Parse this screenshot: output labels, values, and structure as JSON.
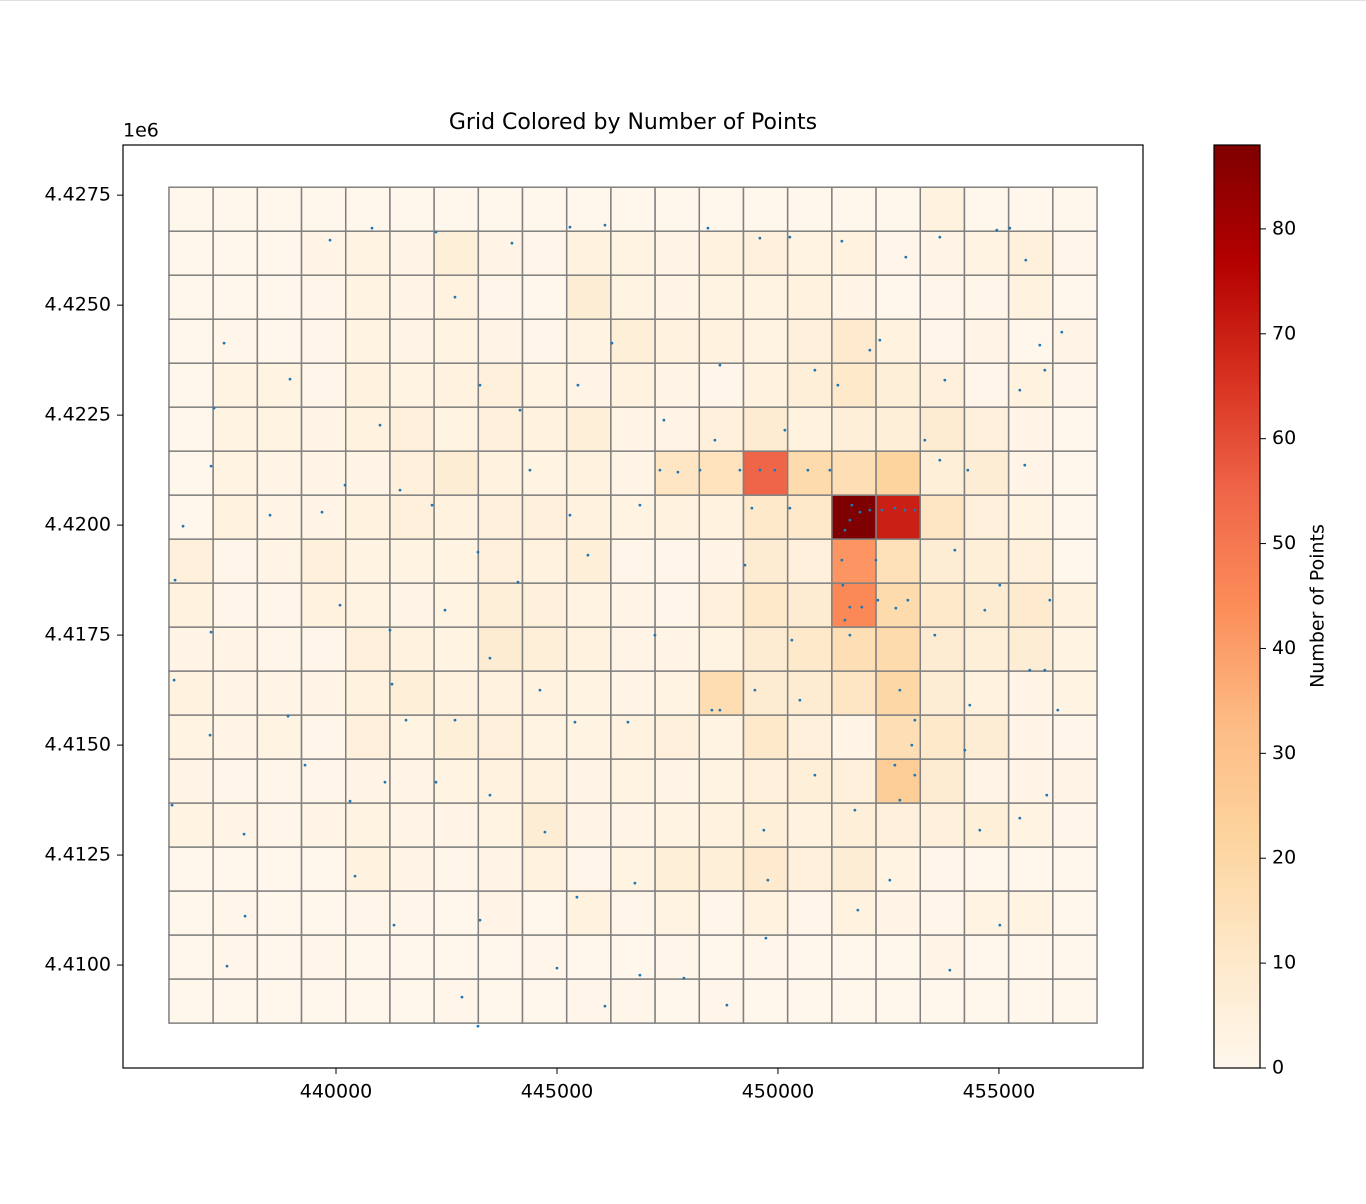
{
  "chart_data": {
    "type": "grid-heatmap",
    "title": "Grid Colored by Number of Points",
    "y_offset_label": "1e6",
    "xlim": [
      435180,
      458260
    ],
    "ylim": [
      4407660,
      4428640
    ],
    "xticks": [
      440000,
      445000,
      450000,
      455000
    ],
    "yticks": [
      {
        "value": 4410000,
        "label": "4.4100"
      },
      {
        "value": 4412500,
        "label": "4.4125"
      },
      {
        "value": 4415000,
        "label": "4.4150"
      },
      {
        "value": 4417500,
        "label": "4.4175"
      },
      {
        "value": 4420000,
        "label": "4.4200"
      },
      {
        "value": 4422500,
        "label": "4.4225"
      },
      {
        "value": 4425000,
        "label": "4.4250"
      },
      {
        "value": 4427500,
        "label": "4.4275"
      }
    ],
    "colormap": "OrRd",
    "edgecolor": "#808080",
    "x_edges": [
      436220,
      437220,
      438220,
      439220,
      440220,
      441220,
      442220,
      443220,
      444220,
      445220,
      446220,
      447220,
      448220,
      449220,
      450220,
      451220,
      452220,
      453220,
      454220,
      455220,
      456220,
      457220
    ],
    "y_edges": [
      4427680,
      4426680,
      4425680,
      4424680,
      4423680,
      4422680,
      4421680,
      4420680,
      4419680,
      4418680,
      4417680,
      4416680,
      4415680,
      4414680,
      4413680,
      4412680,
      4411680,
      4410680,
      4409680,
      4408680
    ],
    "counts": [
      [
        0,
        0,
        0,
        0,
        0,
        0,
        0,
        0,
        0,
        0,
        0,
        0,
        0,
        0,
        0,
        0,
        0,
        4,
        0,
        0,
        0
      ],
      [
        0,
        0,
        0,
        2,
        3,
        2,
        6,
        2,
        1,
        4,
        3,
        2,
        4,
        5,
        3,
        4,
        1,
        2,
        3,
        5,
        1
      ],
      [
        0,
        0,
        0,
        1,
        3,
        2,
        4,
        1,
        0,
        7,
        3,
        2,
        3,
        3,
        4,
        2,
        0,
        1,
        1,
        4,
        0
      ],
      [
        0,
        1,
        0,
        1,
        3,
        2,
        3,
        2,
        1,
        3,
        6,
        4,
        4,
        3,
        5,
        9,
        4,
        1,
        2,
        0,
        2
      ],
      [
        0,
        3,
        3,
        1,
        4,
        3,
        4,
        5,
        3,
        2,
        4,
        2,
        1,
        4,
        6,
        10,
        6,
        5,
        1,
        4,
        1
      ],
      [
        0,
        3,
        3,
        2,
        4,
        5,
        3,
        5,
        4,
        6,
        2,
        2,
        5,
        8,
        4,
        6,
        6,
        8,
        5,
        2,
        0
      ],
      [
        0,
        3,
        2,
        2,
        2,
        5,
        7,
        4,
        3,
        4,
        2,
        12,
        14,
        55,
        18,
        16,
        22,
        6,
        7,
        2,
        0
      ],
      [
        0,
        4,
        2,
        2,
        4,
        5,
        4,
        5,
        5,
        4,
        3,
        4,
        4,
        10,
        10,
        88,
        70,
        12,
        5,
        3,
        0
      ],
      [
        5,
        1,
        2,
        5,
        3,
        3,
        3,
        5,
        4,
        6,
        1,
        1,
        2,
        8,
        5,
        42,
        15,
        7,
        6,
        5,
        0
      ],
      [
        4,
        1,
        1,
        4,
        3,
        2,
        3,
        6,
        5,
        3,
        2,
        1,
        5,
        10,
        8,
        45,
        18,
        10,
        8,
        9,
        4
      ],
      [
        2,
        2,
        1,
        1,
        5,
        4,
        3,
        8,
        6,
        4,
        2,
        2,
        3,
        8,
        10,
        16,
        18,
        8,
        6,
        7,
        3
      ],
      [
        4,
        2,
        2,
        2,
        4,
        6,
        4,
        4,
        4,
        3,
        2,
        3,
        17,
        8,
        8,
        12,
        20,
        7,
        4,
        2,
        3
      ],
      [
        3,
        2,
        3,
        1,
        5,
        3,
        6,
        5,
        3,
        3,
        4,
        5,
        3,
        10,
        5,
        2,
        16,
        10,
        7,
        2,
        1
      ],
      [
        2,
        1,
        1,
        1,
        2,
        2,
        3,
        4,
        4,
        2,
        3,
        2,
        3,
        5,
        6,
        5,
        25,
        8,
        2,
        2,
        2
      ],
      [
        3,
        2,
        1,
        2,
        3,
        2,
        2,
        3,
        7,
        2,
        2,
        3,
        4,
        6,
        4,
        6,
        5,
        5,
        6,
        3,
        1
      ],
      [
        0,
        0,
        0,
        0,
        4,
        2,
        1,
        2,
        4,
        1,
        3,
        6,
        6,
        9,
        5,
        7,
        3,
        1,
        0,
        0,
        0
      ],
      [
        0,
        1,
        0,
        0,
        1,
        1,
        0,
        2,
        0,
        4,
        1,
        3,
        1,
        4,
        1,
        4,
        2,
        1,
        3,
        3,
        0
      ],
      [
        0,
        1,
        0,
        1,
        0,
        0,
        0,
        0,
        1,
        0,
        0,
        1,
        0,
        1,
        0,
        0,
        0,
        2,
        0,
        0,
        0
      ],
      [
        0,
        0,
        0,
        0,
        0,
        0,
        1,
        0,
        0,
        1,
        1,
        0,
        1,
        0,
        0,
        0,
        0,
        0,
        0,
        0,
        0
      ]
    ],
    "points": {
      "color": "#1f77b4",
      "x": [
        439864,
        440814,
        442262,
        442692,
        443981,
        445293,
        446085,
        448415,
        449591,
        450269,
        451446,
        452893,
        453662,
        454952,
        455246,
        455608,
        437467,
        437240,
        437172,
        436539,
        436358,
        437172,
        436336,
        437150,
        436290,
        437919,
        437942,
        437534,
        438959,
        438507,
        438914,
        439299,
        439683,
        440204,
        440090,
        440317,
        440430,
        440995,
        441448,
        441221,
        441267,
        441583,
        441108,
        441312,
        442172,
        442466,
        442692,
        442262,
        442850,
        443257,
        443212,
        443483,
        443483,
        443257,
        443212,
        444162,
        444388,
        444117,
        444614,
        444728,
        444999,
        445474,
        445293,
        445700,
        445406,
        445451,
        446085,
        446243,
        446876,
        446605,
        446763,
        446876,
        447419,
        447216,
        447872,
        447736,
        448686,
        448573,
        448505,
        448844,
        449138,
        449591,
        449930,
        449410,
        449252,
        449478,
        449681,
        449772,
        449727,
        450156,
        450269,
        450315,
        450496,
        450835,
        450677,
        451174,
        450835,
        451355,
        451627,
        451514,
        451672,
        451853,
        452079,
        452350,
        452645,
        452871,
        453097,
        451446,
        451468,
        451627,
        451898,
        451514,
        452215,
        452260,
        452667,
        452939,
        452758,
        453097,
        453029,
        452645,
        453097,
        452758,
        451740,
        451808,
        452531,
        453549,
        453776,
        453662,
        454296,
        454002,
        454680,
        454341,
        454228,
        454567,
        455020,
        453889,
        455585,
        455472,
        456038,
        455925,
        456422,
        455698,
        456038,
        456332,
        456083,
        455472,
        456151,
        455020,
        452305,
        453323,
        448234,
        447329,
        452079,
        448686,
        451627
      ],
      "y": [
        4426477,
        4426750,
        4426659,
        4425182,
        4426409,
        4426773,
        4426818,
        4426750,
        4426523,
        4426545,
        4426454,
        4426091,
        4426545,
        4426704,
        4426750,
        4426023,
        4424136,
        4422659,
        4421340,
        4419976,
        4418749,
        4417567,
        4416476,
        4415226,
        4413635,
        4412976,
        4411112,
        4409975,
        4423318,
        4420226,
        4415658,
        4414544,
        4420295,
        4420908,
        4418181,
        4413726,
        4412021,
        4422272,
        4420795,
        4417612,
        4416385,
        4415567,
        4414157,
        4410907,
        4420454,
        4418067,
        4415567,
        4414157,
        4409271,
        4423181,
        4419385,
        4416976,
        4413862,
        4411021,
        4408611,
        4422613,
        4421249,
        4418703,
        4416249,
        4413021,
        4409930,
        4423181,
        4420226,
        4419317,
        4415521,
        4411544,
        4409066,
        4424136,
        4420454,
        4415521,
        4411862,
        4409771,
        4422386,
        4417499,
        4409702,
        4421204,
        4423636,
        4421931,
        4415794,
        4409089,
        4421249,
        4421249,
        4421249,
        4420386,
        4419090,
        4416249,
        4413066,
        4411930,
        4410612,
        4422158,
        4420386,
        4417385,
        4416021,
        4414317,
        4421249,
        4421249,
        4423522,
        4423181,
        4420113,
        4419885,
        4420454,
        4420295,
        4420340,
        4420340,
        4420386,
        4420340,
        4420340,
        4419203,
        4418635,
        4418135,
        4418135,
        4417840,
        4419203,
        4418294,
        4418113,
        4418294,
        4416249,
        4415567,
        4414998,
        4414544,
        4414317,
        4413748,
        4413521,
        4411248,
        4411930,
        4417499,
        4423295,
        4421476,
        4421249,
        4419431,
        4418067,
        4415908,
        4414885,
        4413066,
        4410907,
        4409884,
        4421363,
        4423068,
        4423522,
        4424090,
        4424386,
        4416703,
        4416703,
        4415794,
        4413862,
        4413339,
        4418294,
        4418635,
        4424204,
        4421931,
        4421249,
        4421249,
        4423977,
        4415794,
        4417499
      ]
    },
    "colorbar": {
      "label": "Number of Points",
      "lim": [
        0,
        88
      ],
      "ticks": [
        0,
        10,
        20,
        30,
        40,
        50,
        60,
        70,
        80
      ]
    }
  }
}
